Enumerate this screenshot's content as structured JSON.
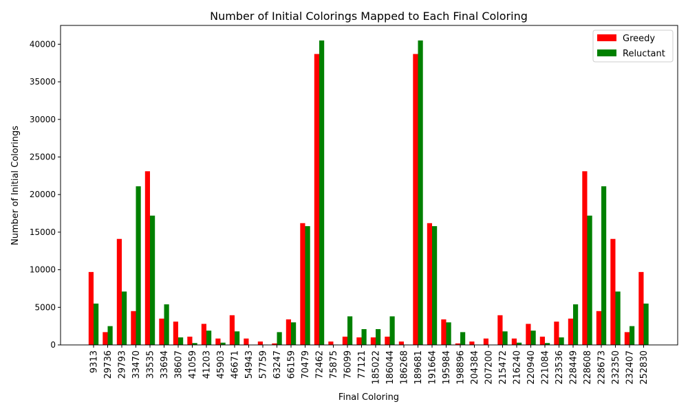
{
  "chart_data": {
    "type": "bar",
    "title": "Number of Initial Colorings Mapped to Each Final Coloring",
    "xlabel": "Final Coloring",
    "ylabel": "Number of Initial Colorings",
    "ylim": [
      0,
      42500
    ],
    "yticks": [
      0,
      5000,
      10000,
      15000,
      20000,
      25000,
      30000,
      35000,
      40000
    ],
    "grid": false,
    "legend_position": "top-right",
    "categories": [
      "9313",
      "29736",
      "29793",
      "33470",
      "33535",
      "33694",
      "38607",
      "41059",
      "41203",
      "45903",
      "46671",
      "54943",
      "57759",
      "63247",
      "66159",
      "70479",
      "72462",
      "75875",
      "76099",
      "77121",
      "185022",
      "186044",
      "186268",
      "189681",
      "191664",
      "195984",
      "198896",
      "204384",
      "207200",
      "215472",
      "216240",
      "220940",
      "221084",
      "223536",
      "228449",
      "228608",
      "228673",
      "232350",
      "232407",
      "252830"
    ],
    "series": [
      {
        "name": "Greedy",
        "color": "#ff0000",
        "values": [
          9700,
          1700,
          14100,
          4500,
          23100,
          3500,
          3100,
          1100,
          2800,
          850,
          3950,
          850,
          450,
          200,
          3400,
          16200,
          38700,
          450,
          1100,
          1000,
          1000,
          1100,
          450,
          38700,
          16200,
          3400,
          200,
          450,
          850,
          3950,
          850,
          2800,
          1100,
          3100,
          3500,
          23100,
          4500,
          14100,
          1700,
          9700
        ]
      },
      {
        "name": "Reluctant",
        "color": "#008000",
        "values": [
          5500,
          2500,
          7100,
          21100,
          17200,
          5400,
          1000,
          250,
          1900,
          300,
          1800,
          0,
          50,
          1700,
          3000,
          15800,
          40500,
          50,
          3800,
          2100,
          2100,
          3800,
          50,
          40500,
          15800,
          3000,
          1700,
          50,
          0,
          1800,
          300,
          1900,
          250,
          1000,
          5400,
          17200,
          21100,
          7100,
          2500,
          5500
        ]
      }
    ]
  }
}
